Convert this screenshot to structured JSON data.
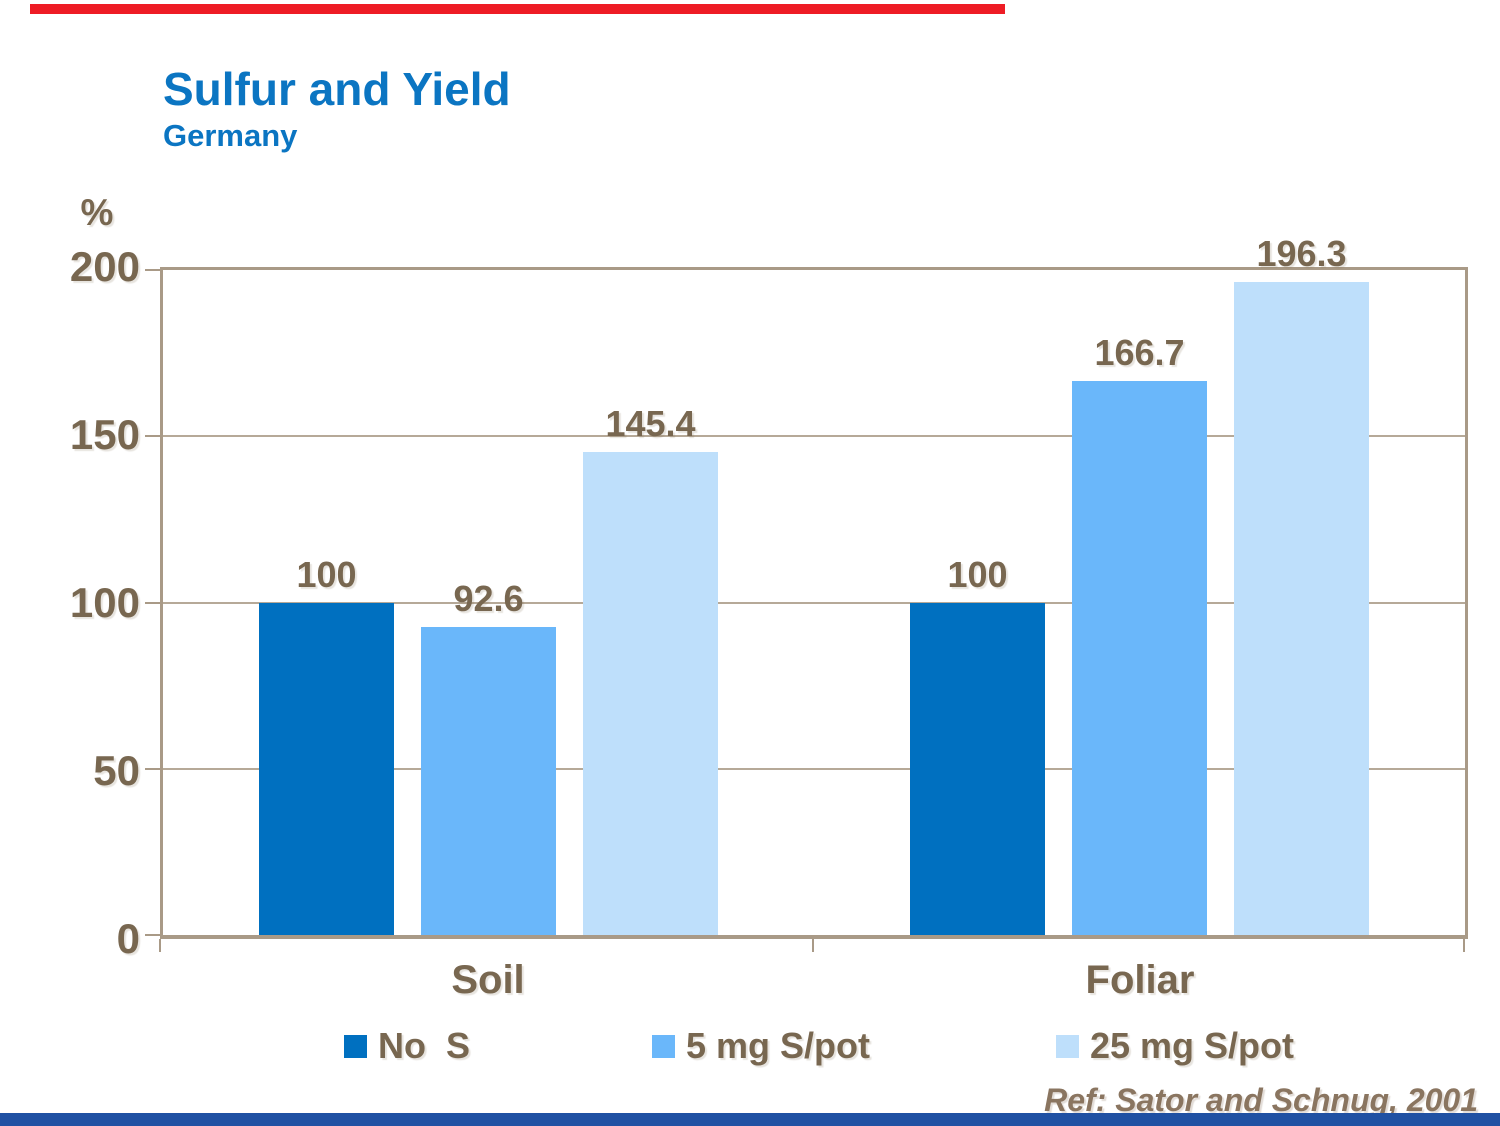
{
  "accents": {
    "top_bar_color": "#ee1c25",
    "bottom_bar_color": "#2051a3"
  },
  "header": {
    "title": "Sulfur and Yield",
    "subtitle": "Germany",
    "title_color": "#0b75c2"
  },
  "footer": {
    "reference": "Ref: Sator and Schnug, 2001"
  },
  "chart_data": {
    "type": "bar",
    "title": "Sulfur and Yield",
    "subtitle": "Germany",
    "axis_unit_label": "%",
    "categories": [
      "Soil",
      "Foliar"
    ],
    "series": [
      {
        "name": "No  S",
        "color": "#0070c0",
        "values": [
          100,
          100
        ],
        "labels": [
          "100",
          "100"
        ]
      },
      {
        "name": "5 mg S/pot",
        "color": "#6ab7fa",
        "values": [
          92.6,
          166.7
        ],
        "labels": [
          "92.6",
          "166.7"
        ]
      },
      {
        "name": "25 mg S/pot",
        "color": "#bedffb",
        "values": [
          145.4,
          196.3
        ],
        "labels": [
          "145.4",
          "196.3"
        ]
      }
    ],
    "yaxis": {
      "min": 0,
      "max": 200,
      "ticks": [
        "200",
        "150",
        "100",
        "50",
        "0"
      ],
      "tick_values": [
        200,
        150,
        100,
        50,
        0
      ]
    },
    "grid": true,
    "legend_position": "bottom",
    "text_color": "#786750",
    "grid_color": "#b6a998"
  }
}
